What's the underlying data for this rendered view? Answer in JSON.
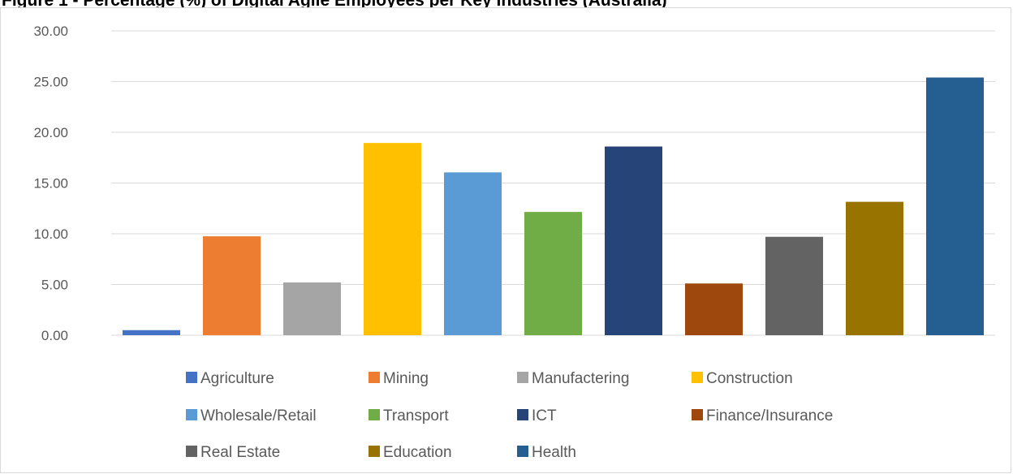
{
  "chart_data": {
    "type": "bar",
    "title": "Figure 1 - Percentage (%) of Digital Agile Employees per Key Industries (Australia)",
    "xlabel": "",
    "ylabel": "",
    "ylim": [
      0,
      30
    ],
    "yticks": [
      "0.00",
      "5.00",
      "10.00",
      "15.00",
      "20.00",
      "25.00",
      "30.00"
    ],
    "grid": true,
    "legend_position": "bottom",
    "categories": [
      "Agriculture",
      "Mining",
      "Manufactering",
      "Construction",
      "Wholesale/Retail",
      "Transport",
      "ICT",
      "Finance/Insurance",
      "Real Estate",
      "Education",
      "Health"
    ],
    "values": [
      0.5,
      9.75,
      5.2,
      18.95,
      16.05,
      12.15,
      18.6,
      5.1,
      9.7,
      13.15,
      25.4
    ],
    "colors": [
      "#4472C4",
      "#ED7D31",
      "#A5A5A5",
      "#FFC000",
      "#5B9BD5",
      "#70AD47",
      "#264478",
      "#9E480E",
      "#636363",
      "#997300",
      "#255E91"
    ]
  }
}
